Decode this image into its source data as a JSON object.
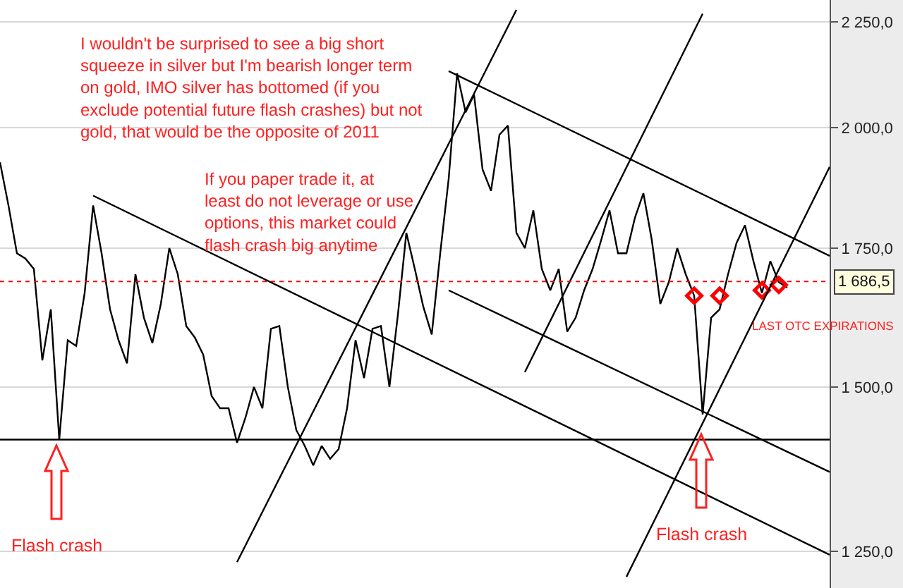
{
  "chart_data": {
    "type": "line",
    "categories": [
      null,
      null,
      null,
      null,
      null,
      null,
      null,
      null,
      null,
      null,
      null,
      null,
      null,
      null,
      null,
      null,
      null,
      null,
      null,
      null,
      null,
      null,
      null,
      null,
      null,
      null,
      null,
      null,
      null,
      null,
      null,
      null,
      null,
      null,
      null,
      null,
      null,
      null,
      null,
      null,
      null,
      null,
      null,
      null,
      null,
      null,
      null,
      null,
      null,
      null,
      null,
      null,
      null,
      null,
      null,
      null,
      null,
      null,
      null,
      null,
      null,
      null,
      null,
      null,
      null,
      null,
      null,
      null,
      null,
      null,
      null,
      null,
      null,
      null,
      null,
      null,
      null,
      null,
      null,
      null,
      null,
      null,
      null,
      null,
      null,
      null,
      null,
      null,
      null,
      null,
      null,
      null,
      null,
      null,
      null,
      null,
      null,
      null,
      null
    ],
    "series": [
      {
        "color": "#000000",
        "values": [
          1925,
          1835,
          1740,
          1730,
          1710,
          1545,
          1635,
          1415,
          1580,
          1570,
          1665,
          1835,
          1740,
          1635,
          1580,
          1540,
          1700,
          1620,
          1575,
          1645,
          1750,
          1700,
          1605,
          1585,
          1555,
          1485,
          1465,
          1465,
          1410,
          1450,
          1500,
          1465,
          1600,
          1605,
          1500,
          1430,
          1405,
          1375,
          1405,
          1385,
          1400,
          1465,
          1580,
          1515,
          1600,
          1605,
          1500,
          1625,
          1780,
          1710,
          1640,
          1590,
          1740,
          1890,
          2125,
          2035,
          2075,
          1910,
          1865,
          1985,
          2005,
          1780,
          1750,
          1825,
          1710,
          1670,
          1710,
          1595,
          1620,
          1670,
          1710,
          1765,
          1825,
          1740,
          1740,
          1810,
          1860,
          1765,
          1645,
          1685,
          1750,
          1700,
          1660,
          1455,
          1620,
          1635,
          1700,
          1760,
          1795,
          1725,
          1665,
          1725,
          1685,
          1675,
          null,
          null,
          null,
          null,
          null
        ]
      },
      {
        "type": "scatter",
        "marker": "diamond",
        "color": "#ff0000",
        "values": [
          null,
          null,
          null,
          null,
          null,
          null,
          null,
          null,
          null,
          null,
          null,
          null,
          null,
          null,
          null,
          null,
          null,
          null,
          null,
          null,
          null,
          null,
          null,
          null,
          null,
          null,
          null,
          null,
          null,
          null,
          null,
          null,
          null,
          null,
          null,
          null,
          null,
          null,
          null,
          null,
          null,
          null,
          null,
          null,
          null,
          null,
          null,
          null,
          null,
          null,
          null,
          null,
          null,
          null,
          null,
          null,
          null,
          null,
          null,
          null,
          null,
          null,
          null,
          null,
          null,
          null,
          null,
          null,
          null,
          null,
          null,
          null,
          null,
          null,
          null,
          null,
          null,
          null,
          null,
          null,
          null,
          null,
          1660,
          null,
          null,
          1660,
          null,
          null,
          null,
          null,
          1670,
          null,
          1680,
          null,
          null,
          null,
          null,
          null,
          null
        ]
      },
      {
        "type": "line",
        "color": "#000000",
        "values": [
          null,
          null,
          null,
          null,
          null,
          null,
          null,
          null,
          null,
          null,
          null,
          1855,
          null,
          null,
          null,
          null,
          null,
          null,
          null,
          null,
          null,
          null,
          null,
          null,
          null,
          null,
          null,
          null,
          null,
          null,
          null,
          null,
          null,
          null,
          null,
          null,
          null,
          null,
          null,
          null,
          null,
          null,
          null,
          null,
          null,
          null,
          null,
          null,
          null,
          null,
          null,
          null,
          null,
          null,
          null,
          null,
          null,
          null,
          null,
          null,
          null,
          null,
          null,
          null,
          null,
          null,
          null,
          null,
          null,
          null,
          null,
          null,
          null,
          null,
          null,
          null,
          null,
          null,
          null,
          null,
          null,
          null,
          null,
          null,
          null,
          null,
          null,
          null,
          null,
          null,
          null,
          null,
          null,
          null,
          null,
          null,
          null,
          null,
          1245
        ]
      },
      {
        "type": "line",
        "color": "#000000",
        "values": [
          null,
          null,
          null,
          null,
          null,
          null,
          null,
          null,
          null,
          null,
          null,
          null,
          null,
          null,
          null,
          null,
          null,
          null,
          null,
          null,
          null,
          null,
          null,
          null,
          null,
          null,
          null,
          null,
          1235,
          null,
          null,
          null,
          null,
          null,
          null,
          null,
          null,
          null,
          null,
          null,
          null,
          null,
          null,
          null,
          null,
          null,
          null,
          null,
          null,
          null,
          null,
          null,
          null,
          null,
          null,
          null,
          null,
          null,
          null,
          null,
          null,
          2280,
          null,
          null,
          null,
          null,
          null,
          null,
          null,
          null,
          null,
          null,
          null,
          null,
          null,
          null,
          null,
          null,
          null,
          null,
          null,
          null,
          null,
          null,
          null,
          null,
          null,
          null,
          null,
          null,
          null,
          null,
          null,
          null,
          null,
          null,
          null,
          null,
          null
        ]
      },
      {
        "type": "line",
        "color": "#000000",
        "values": [
          null,
          null,
          null,
          null,
          null,
          null,
          null,
          null,
          null,
          null,
          null,
          null,
          null,
          null,
          null,
          null,
          null,
          null,
          null,
          null,
          null,
          null,
          null,
          null,
          null,
          null,
          null,
          null,
          null,
          null,
          null,
          null,
          null,
          null,
          null,
          null,
          null,
          null,
          null,
          null,
          null,
          null,
          null,
          null,
          null,
          null,
          null,
          null,
          null,
          null,
          null,
          null,
          null,
          2130,
          null,
          null,
          null,
          null,
          null,
          null,
          null,
          null,
          null,
          null,
          null,
          null,
          null,
          null,
          null,
          null,
          null,
          null,
          null,
          null,
          null,
          null,
          null,
          null,
          null,
          null,
          null,
          null,
          null,
          null,
          null,
          null,
          null,
          null,
          null,
          null,
          null,
          null,
          null,
          null,
          null,
          null,
          null,
          null,
          1735
        ]
      },
      {
        "type": "line",
        "color": "#000000",
        "values": [
          null,
          null,
          null,
          null,
          null,
          null,
          null,
          null,
          null,
          null,
          null,
          null,
          null,
          null,
          null,
          null,
          null,
          null,
          null,
          null,
          null,
          null,
          null,
          null,
          null,
          null,
          null,
          null,
          null,
          null,
          null,
          null,
          null,
          null,
          null,
          null,
          null,
          null,
          null,
          null,
          null,
          null,
          null,
          null,
          null,
          null,
          null,
          null,
          null,
          null,
          null,
          null,
          null,
          1670,
          null,
          null,
          null,
          null,
          null,
          null,
          null,
          null,
          null,
          null,
          null,
          null,
          null,
          null,
          null,
          null,
          null,
          null,
          null,
          null,
          null,
          null,
          null,
          null,
          null,
          null,
          null,
          null,
          null,
          null,
          null,
          null,
          null,
          null,
          null,
          null,
          null,
          null,
          null,
          null,
          null,
          null,
          null,
          null,
          1365
        ]
      },
      {
        "type": "line",
        "color": "#000000",
        "values": [
          null,
          null,
          null,
          null,
          null,
          null,
          null,
          null,
          null,
          null,
          null,
          null,
          null,
          null,
          null,
          null,
          null,
          null,
          null,
          null,
          null,
          null,
          null,
          null,
          null,
          null,
          null,
          null,
          null,
          null,
          null,
          null,
          null,
          null,
          null,
          null,
          null,
          null,
          null,
          null,
          null,
          null,
          null,
          null,
          null,
          null,
          null,
          null,
          null,
          null,
          null,
          null,
          null,
          null,
          null,
          null,
          null,
          null,
          null,
          null,
          null,
          null,
          1525,
          null,
          null,
          null,
          null,
          null,
          null,
          null,
          null,
          null,
          null,
          null,
          null,
          null,
          null,
          null,
          null,
          null,
          null,
          null,
          null,
          2270,
          null,
          null,
          null,
          null,
          null,
          null,
          null,
          null,
          null,
          null,
          null,
          null,
          null,
          null,
          null
        ]
      },
      {
        "type": "line",
        "color": "#000000",
        "values": [
          null,
          null,
          null,
          null,
          null,
          null,
          null,
          null,
          null,
          null,
          null,
          null,
          null,
          null,
          null,
          null,
          null,
          null,
          null,
          null,
          null,
          null,
          null,
          null,
          null,
          null,
          null,
          null,
          null,
          null,
          null,
          null,
          null,
          null,
          null,
          null,
          null,
          null,
          null,
          null,
          null,
          null,
          null,
          null,
          null,
          null,
          null,
          null,
          null,
          null,
          null,
          null,
          null,
          null,
          null,
          null,
          null,
          null,
          null,
          null,
          null,
          null,
          null,
          null,
          null,
          null,
          null,
          null,
          null,
          null,
          null,
          null,
          null,
          null,
          1215,
          null,
          null,
          null,
          null,
          null,
          null,
          null,
          null,
          null,
          null,
          null,
          null,
          null,
          null,
          null,
          null,
          null,
          null,
          null,
          null,
          null,
          null,
          null,
          1915
        ]
      }
    ],
    "ylim": [
      1200,
      2305
    ],
    "yticks": [
      {
        "value": 1250,
        "label": "1 250,0"
      },
      {
        "value": 1500,
        "label": "1 500,0"
      },
      {
        "value": 1750,
        "label": "1 750,0"
      },
      {
        "value": 2000,
        "label": "2 000,0"
      },
      {
        "value": 2250,
        "label": "2 250,0"
      }
    ],
    "log": true,
    "grid": "y",
    "marker": "none",
    "line_style": "solid",
    "ref_lines": [
      {
        "axis": "y",
        "value": 1415,
        "color": "#000000",
        "line_style": "solid"
      },
      {
        "axis": "y",
        "value": 1686.5,
        "label": "1 686,5",
        "color": "#ff0000",
        "line_style": "dotted"
      }
    ],
    "annotations": [
      "I wouldn't be surprised to see a big short\nsqueeze in silver but I'm bearish longer term\non gold, IMO silver has bottomed (if you\nexclude potential future flash crashes) but not\ngold, that would be the opposite of 2011",
      "If you paper trade it, at\nleast do not leverage or use\noptions, this market could\nflash crash big anytime",
      "Flash crash",
      "Flash crash",
      "LAST OTC EXPIRATIONS"
    ]
  }
}
